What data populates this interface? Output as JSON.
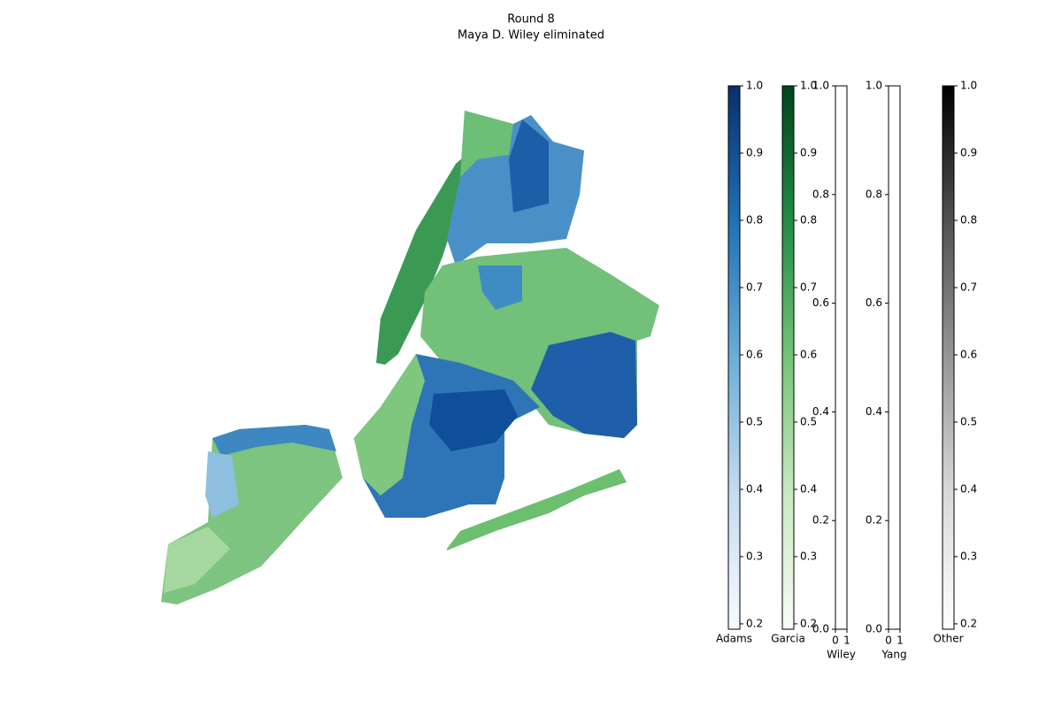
{
  "title": "Round 8",
  "subtitle": "Maya D. Wiley eliminated",
  "colorbars": [
    {
      "label": "Adams",
      "lim": [
        0.192,
        1
      ],
      "ticks": [
        0.2,
        0.3,
        0.4,
        0.5,
        0.6,
        0.7,
        0.8,
        0.9,
        {
          "value": 1,
          "label": "1.0"
        }
      ],
      "tick_side": "right",
      "colors": [
        "#f7fbff",
        "#c6dbef",
        "#6baed6",
        "#2171b5",
        "#08306b"
      ]
    },
    {
      "label": "Garcia",
      "lim": [
        0.192,
        1
      ],
      "ticks": [
        0.2,
        0.3,
        0.4,
        0.5,
        0.6,
        0.7,
        0.8,
        0.9,
        {
          "value": 1,
          "label": "1.0"
        }
      ],
      "tick_side": "right",
      "colors": [
        "#f7fcf5",
        "#c7e9c0",
        "#74c476",
        "#238b45",
        "#00441b"
      ]
    },
    {
      "label": "Wiley",
      "lim": [
        0,
        1
      ],
      "ticks": [
        {
          "value": 0,
          "label": "0.0"
        },
        0.2,
        0.4,
        0.6,
        0.8,
        {
          "value": 1,
          "label": "1.0"
        }
      ],
      "tick_side": "left",
      "colors": [
        "#ffffff",
        "#ffffff"
      ],
      "xlim": [
        0,
        1
      ],
      "xticks": [
        0,
        1
      ]
    },
    {
      "label": "Yang",
      "lim": [
        0,
        1
      ],
      "ticks": [
        {
          "value": 0,
          "label": "0.0"
        },
        0.2,
        0.4,
        0.6,
        0.8,
        {
          "value": 1,
          "label": "1.0"
        }
      ],
      "tick_side": "left",
      "colors": [
        "#ffffff",
        "#ffffff"
      ],
      "xlim": [
        0,
        1
      ],
      "xticks": [
        0,
        1
      ]
    },
    {
      "label": "Other",
      "lim": [
        0.192,
        1
      ],
      "ticks": [
        0.2,
        0.3,
        0.4,
        0.5,
        0.6,
        0.7,
        0.8,
        0.9,
        {
          "value": 1,
          "label": "1.0"
        }
      ],
      "tick_side": "right",
      "colors": [
        "#ffffff",
        "#d9d9d9",
        "#969696",
        "#525252",
        "#000000"
      ]
    }
  ]
}
